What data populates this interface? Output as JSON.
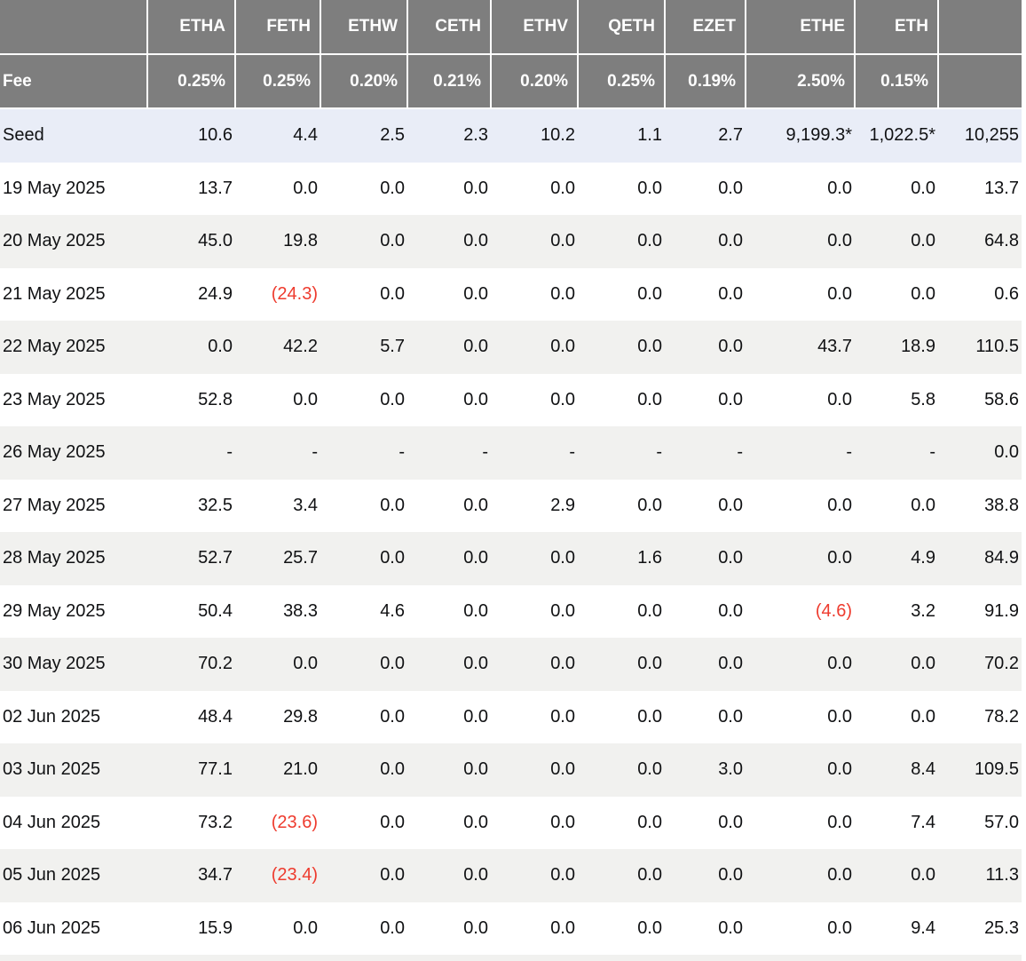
{
  "chart_data": {
    "type": "table",
    "columns": [
      "",
      "ETHA",
      "FETH",
      "ETHW",
      "CETH",
      "ETHV",
      "QETH",
      "EZET",
      "ETHE",
      "ETH",
      ""
    ],
    "fee": {
      "label": "Fee",
      "values": [
        "0.25%",
        "0.25%",
        "0.20%",
        "0.21%",
        "0.20%",
        "0.25%",
        "0.19%",
        "2.50%",
        "0.15%",
        ""
      ]
    },
    "rows": [
      {
        "label": "Seed",
        "values": [
          "10.6",
          "4.4",
          "2.5",
          "2.3",
          "10.2",
          "1.1",
          "2.7",
          "9,199.3*",
          "1,022.5*",
          "10,255"
        ]
      },
      {
        "label": "19 May 2025",
        "values": [
          "13.7",
          "0.0",
          "0.0",
          "0.0",
          "0.0",
          "0.0",
          "0.0",
          "0.0",
          "0.0",
          "13.7"
        ]
      },
      {
        "label": "20 May 2025",
        "values": [
          "45.0",
          "19.8",
          "0.0",
          "0.0",
          "0.0",
          "0.0",
          "0.0",
          "0.0",
          "0.0",
          "64.8"
        ]
      },
      {
        "label": "21 May 2025",
        "values": [
          "24.9",
          "(24.3)",
          "0.0",
          "0.0",
          "0.0",
          "0.0",
          "0.0",
          "0.0",
          "0.0",
          "0.6"
        ]
      },
      {
        "label": "22 May 2025",
        "values": [
          "0.0",
          "42.2",
          "5.7",
          "0.0",
          "0.0",
          "0.0",
          "0.0",
          "43.7",
          "18.9",
          "110.5"
        ]
      },
      {
        "label": "23 May 2025",
        "values": [
          "52.8",
          "0.0",
          "0.0",
          "0.0",
          "0.0",
          "0.0",
          "0.0",
          "0.0",
          "5.8",
          "58.6"
        ]
      },
      {
        "label": "26 May 2025",
        "values": [
          "-",
          "-",
          "-",
          "-",
          "-",
          "-",
          "-",
          "-",
          "-",
          "0.0"
        ]
      },
      {
        "label": "27 May 2025",
        "values": [
          "32.5",
          "3.4",
          "0.0",
          "0.0",
          "2.9",
          "0.0",
          "0.0",
          "0.0",
          "0.0",
          "38.8"
        ]
      },
      {
        "label": "28 May 2025",
        "values": [
          "52.7",
          "25.7",
          "0.0",
          "0.0",
          "0.0",
          "1.6",
          "0.0",
          "0.0",
          "4.9",
          "84.9"
        ]
      },
      {
        "label": "29 May 2025",
        "values": [
          "50.4",
          "38.3",
          "4.6",
          "0.0",
          "0.0",
          "0.0",
          "0.0",
          "(4.6)",
          "3.2",
          "91.9"
        ]
      },
      {
        "label": "30 May 2025",
        "values": [
          "70.2",
          "0.0",
          "0.0",
          "0.0",
          "0.0",
          "0.0",
          "0.0",
          "0.0",
          "0.0",
          "70.2"
        ]
      },
      {
        "label": "02 Jun 2025",
        "values": [
          "48.4",
          "29.8",
          "0.0",
          "0.0",
          "0.0",
          "0.0",
          "0.0",
          "0.0",
          "0.0",
          "78.2"
        ]
      },
      {
        "label": "03 Jun 2025",
        "values": [
          "77.1",
          "21.0",
          "0.0",
          "0.0",
          "0.0",
          "0.0",
          "3.0",
          "0.0",
          "8.4",
          "109.5"
        ]
      },
      {
        "label": "04 Jun 2025",
        "values": [
          "73.2",
          "(23.6)",
          "0.0",
          "0.0",
          "0.0",
          "0.0",
          "0.0",
          "0.0",
          "7.4",
          "57.0"
        ]
      },
      {
        "label": "05 Jun 2025",
        "values": [
          "34.7",
          "(23.4)",
          "0.0",
          "0.0",
          "0.0",
          "0.0",
          "0.0",
          "0.0",
          "0.0",
          "11.3"
        ]
      },
      {
        "label": "06 Jun 2025",
        "values": [
          "15.9",
          "0.0",
          "0.0",
          "0.0",
          "0.0",
          "0.0",
          "0.0",
          "0.0",
          "9.4",
          "25.3"
        ]
      }
    ]
  },
  "colors": {
    "header_bg": "#7e7e7e",
    "header_text": "#ffffff",
    "seed_row_bg": "#e9edf7",
    "alt_row_bg": "#f1f1ef",
    "body_text": "#101113",
    "negative": "#ee3b2e",
    "separator": "#ffffff"
  }
}
